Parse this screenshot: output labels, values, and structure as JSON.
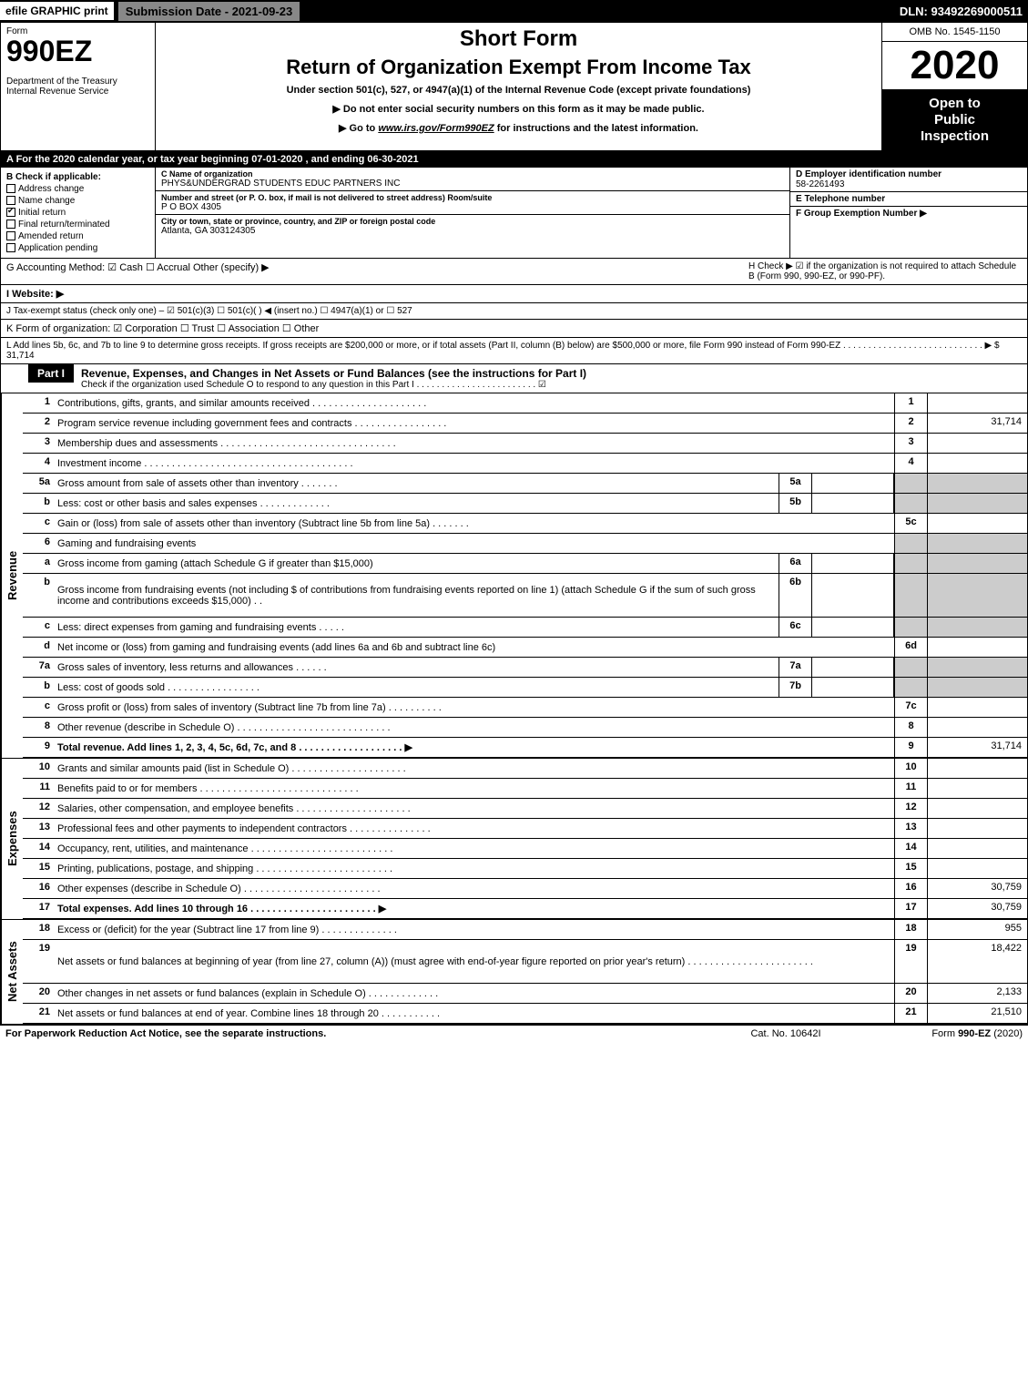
{
  "topbar": {
    "efile": "efile GRAPHIC print",
    "submission": "Submission Date - 2021-09-23",
    "dln": "DLN: 93492269000511"
  },
  "header": {
    "form_label": "Form",
    "form_number": "990EZ",
    "dept1": "Department of the Treasury",
    "dept2": "Internal Revenue Service",
    "short_form": "Short Form",
    "return_title": "Return of Organization Exempt From Income Tax",
    "under_section": "Under section 501(c), 527, or 4947(a)(1) of the Internal Revenue Code (except private foundations)",
    "warning": "▶ Do not enter social security numbers on this form as it may be made public.",
    "goto_prefix": "▶ Go to ",
    "goto_link": "www.irs.gov/Form990EZ",
    "goto_suffix": " for instructions and the latest information.",
    "omb": "OMB No. 1545-1150",
    "tax_year": "2020",
    "open1": "Open to",
    "open2": "Public",
    "open3": "Inspection"
  },
  "period_bar": "A For the 2020 calendar year, or tax year beginning 07-01-2020 , and ending 06-30-2021",
  "box_b": {
    "title": "B Check if applicable:",
    "address_change": "Address change",
    "name_change": "Name change",
    "initial_return": "Initial return",
    "final_return": "Final return/terminated",
    "amended_return": "Amended return",
    "application_pending": "Application pending"
  },
  "box_c": {
    "label": "C Name of organization",
    "name": "PHYS&UNDERGRAD STUDENTS EDUC PARTNERS INC",
    "addr_label": "Number and street (or P. O. box, if mail is not delivered to street address)     Room/suite",
    "addr": "P O BOX 4305",
    "city_label": "City or town, state or province, country, and ZIP or foreign postal code",
    "city": "Atlanta, GA  303124305"
  },
  "box_d": {
    "label": "D Employer identification number",
    "value": "58-2261493"
  },
  "box_e": {
    "label": "E Telephone number",
    "value": ""
  },
  "box_f": {
    "label": "F Group Exemption Number   ▶",
    "value": ""
  },
  "box_g": {
    "label": "G Accounting Method:  ☑ Cash  ☐ Accrual  Other (specify) ▶"
  },
  "box_h": {
    "label": "H  Check ▶ ☑ if the organization is not required to attach Schedule B (Form 990, 990-EZ, or 990-PF)."
  },
  "box_i": {
    "label": "I Website: ▶"
  },
  "box_j": {
    "label": "J Tax-exempt status (check only one) – ☑ 501(c)(3) ☐ 501(c)(  ) ◀ (insert no.) ☐ 4947(a)(1) or ☐ 527"
  },
  "box_k": {
    "label": "K Form of organization:  ☑ Corporation  ☐ Trust  ☐ Association  ☐ Other"
  },
  "box_l": {
    "label": "L Add lines 5b, 6c, and 7b to line 9 to determine gross receipts. If gross receipts are $200,000 or more, or if total assets (Part II, column (B) below) are $500,000 or more, file Form 990 instead of Form 990-EZ  . . . . . . . . . . . . . . . . . . . . . . . . . . . .  ▶ $ 31,714"
  },
  "part1": {
    "label": "Part I",
    "title": "Revenue, Expenses, and Changes in Net Assets or Fund Balances (see the instructions for Part I)",
    "sub": "Check if the organization used Schedule O to respond to any question in this Part I . . . . . . . . . . . . . . . . . . . . . . . .  ☑"
  },
  "sections": {
    "revenue": "Revenue",
    "expenses": "Expenses",
    "net_assets": "Net Assets"
  },
  "rows": [
    {
      "n": "1",
      "d": "Contributions, gifts, grants, and similar amounts received . . . . . . . . . . . . . . . . . . . . .",
      "rn": "1",
      "rv": ""
    },
    {
      "n": "2",
      "d": "Program service revenue including government fees and contracts . . . . . . . . . . . . . . . . .",
      "rn": "2",
      "rv": "31,714"
    },
    {
      "n": "3",
      "d": "Membership dues and assessments . . . . . . . . . . . . . . . . . . . . . . . . . . . . . . . .",
      "rn": "3",
      "rv": ""
    },
    {
      "n": "4",
      "d": "Investment income . . . . . . . . . . . . . . . . . . . . . . . . . . . . . . . . . . . . . .",
      "rn": "4",
      "rv": ""
    },
    {
      "n": "5a",
      "d": "Gross amount from sale of assets other than inventory . . . . . . .",
      "in": "5a",
      "iv": "",
      "grey": true
    },
    {
      "n": "b",
      "d": "Less: cost or other basis and sales expenses . . . . . . . . . . . . .",
      "in": "5b",
      "iv": "",
      "grey": true
    },
    {
      "n": "c",
      "d": "Gain or (loss) from sale of assets other than inventory (Subtract line 5b from line 5a) . . . . . . .",
      "rn": "5c",
      "rv": ""
    },
    {
      "n": "6",
      "d": "Gaming and fundraising events",
      "grey": true
    },
    {
      "n": "a",
      "d": "Gross income from gaming (attach Schedule G if greater than $15,000)",
      "in": "6a",
      "iv": "",
      "grey": true
    },
    {
      "n": "b",
      "d": "Gross income from fundraising events (not including $                    of contributions from fundraising events reported on line 1) (attach Schedule G if the sum of such gross income and contributions exceeds $15,000)   . .",
      "in": "6b",
      "iv": "",
      "grey": true,
      "tall": true
    },
    {
      "n": "c",
      "d": "Less: direct expenses from gaming and fundraising events  . . . . .",
      "in": "6c",
      "iv": "",
      "grey": true
    },
    {
      "n": "d",
      "d": "Net income or (loss) from gaming and fundraising events (add lines 6a and 6b and subtract line 6c)",
      "rn": "6d",
      "rv": ""
    },
    {
      "n": "7a",
      "d": "Gross sales of inventory, less returns and allowances . . . . . .",
      "in": "7a",
      "iv": "",
      "grey": true
    },
    {
      "n": "b",
      "d": "Less: cost of goods sold        . . . . . . . . . . . . . . . . .",
      "in": "7b",
      "iv": "",
      "grey": true
    },
    {
      "n": "c",
      "d": "Gross profit or (loss) from sales of inventory (Subtract line 7b from line 7a)  . . . . . . . . . .",
      "rn": "7c",
      "rv": ""
    },
    {
      "n": "8",
      "d": "Other revenue (describe in Schedule O) . . . . . . . . . . . . . . . . . . . . . . . . . . . .",
      "rn": "8",
      "rv": ""
    },
    {
      "n": "9",
      "d": "Total revenue. Add lines 1, 2, 3, 4, 5c, 6d, 7c, and 8  . . . . . . . . . . . . . . . . . . .  ▶",
      "rn": "9",
      "rv": "31,714",
      "bold": true
    }
  ],
  "exp_rows": [
    {
      "n": "10",
      "d": "Grants and similar amounts paid (list in Schedule O) . . . . . . . . . . . . . . . . . . . . .",
      "rn": "10",
      "rv": ""
    },
    {
      "n": "11",
      "d": "Benefits paid to or for members     . . . . . . . . . . . . . . . . . . . . . . . . . . . . .",
      "rn": "11",
      "rv": ""
    },
    {
      "n": "12",
      "d": "Salaries, other compensation, and employee benefits . . . . . . . . . . . . . . . . . . . . .",
      "rn": "12",
      "rv": ""
    },
    {
      "n": "13",
      "d": "Professional fees and other payments to independent contractors . . . . . . . . . . . . . . .",
      "rn": "13",
      "rv": ""
    },
    {
      "n": "14",
      "d": "Occupancy, rent, utilities, and maintenance . . . . . . . . . . . . . . . . . . . . . . . . . .",
      "rn": "14",
      "rv": ""
    },
    {
      "n": "15",
      "d": "Printing, publications, postage, and shipping . . . . . . . . . . . . . . . . . . . . . . . . .",
      "rn": "15",
      "rv": ""
    },
    {
      "n": "16",
      "d": "Other expenses (describe in Schedule O)    . . . . . . . . . . . . . . . . . . . . . . . . .",
      "rn": "16",
      "rv": "30,759"
    },
    {
      "n": "17",
      "d": "Total expenses. Add lines 10 through 16     . . . . . . . . . . . . . . . . . . . . . . .  ▶",
      "rn": "17",
      "rv": "30,759",
      "bold": true
    }
  ],
  "na_rows": [
    {
      "n": "18",
      "d": "Excess or (deficit) for the year (Subtract line 17 from line 9)       . . . . . . . . . . . . . .",
      "rn": "18",
      "rv": "955"
    },
    {
      "n": "19",
      "d": "Net assets or fund balances at beginning of year (from line 27, column (A)) (must agree with end-of-year figure reported on prior year's return) . . . . . . . . . . . . . . . . . . . . . . .",
      "rn": "19",
      "rv": "18,422",
      "tall": true
    },
    {
      "n": "20",
      "d": "Other changes in net assets or fund balances (explain in Schedule O) . . . . . . . . . . . . .",
      "rn": "20",
      "rv": "2,133"
    },
    {
      "n": "21",
      "d": "Net assets or fund balances at end of year. Combine lines 18 through 20 . . . . . . . . . . .",
      "rn": "21",
      "rv": "21,510"
    }
  ],
  "footer": {
    "left": "For Paperwork Reduction Act Notice, see the separate instructions.",
    "center": "Cat. No. 10642I",
    "right": "Form 990-EZ (2020)"
  },
  "colors": {
    "black": "#000000",
    "grey": "#cccccc",
    "topbar_btn": "#888888"
  }
}
